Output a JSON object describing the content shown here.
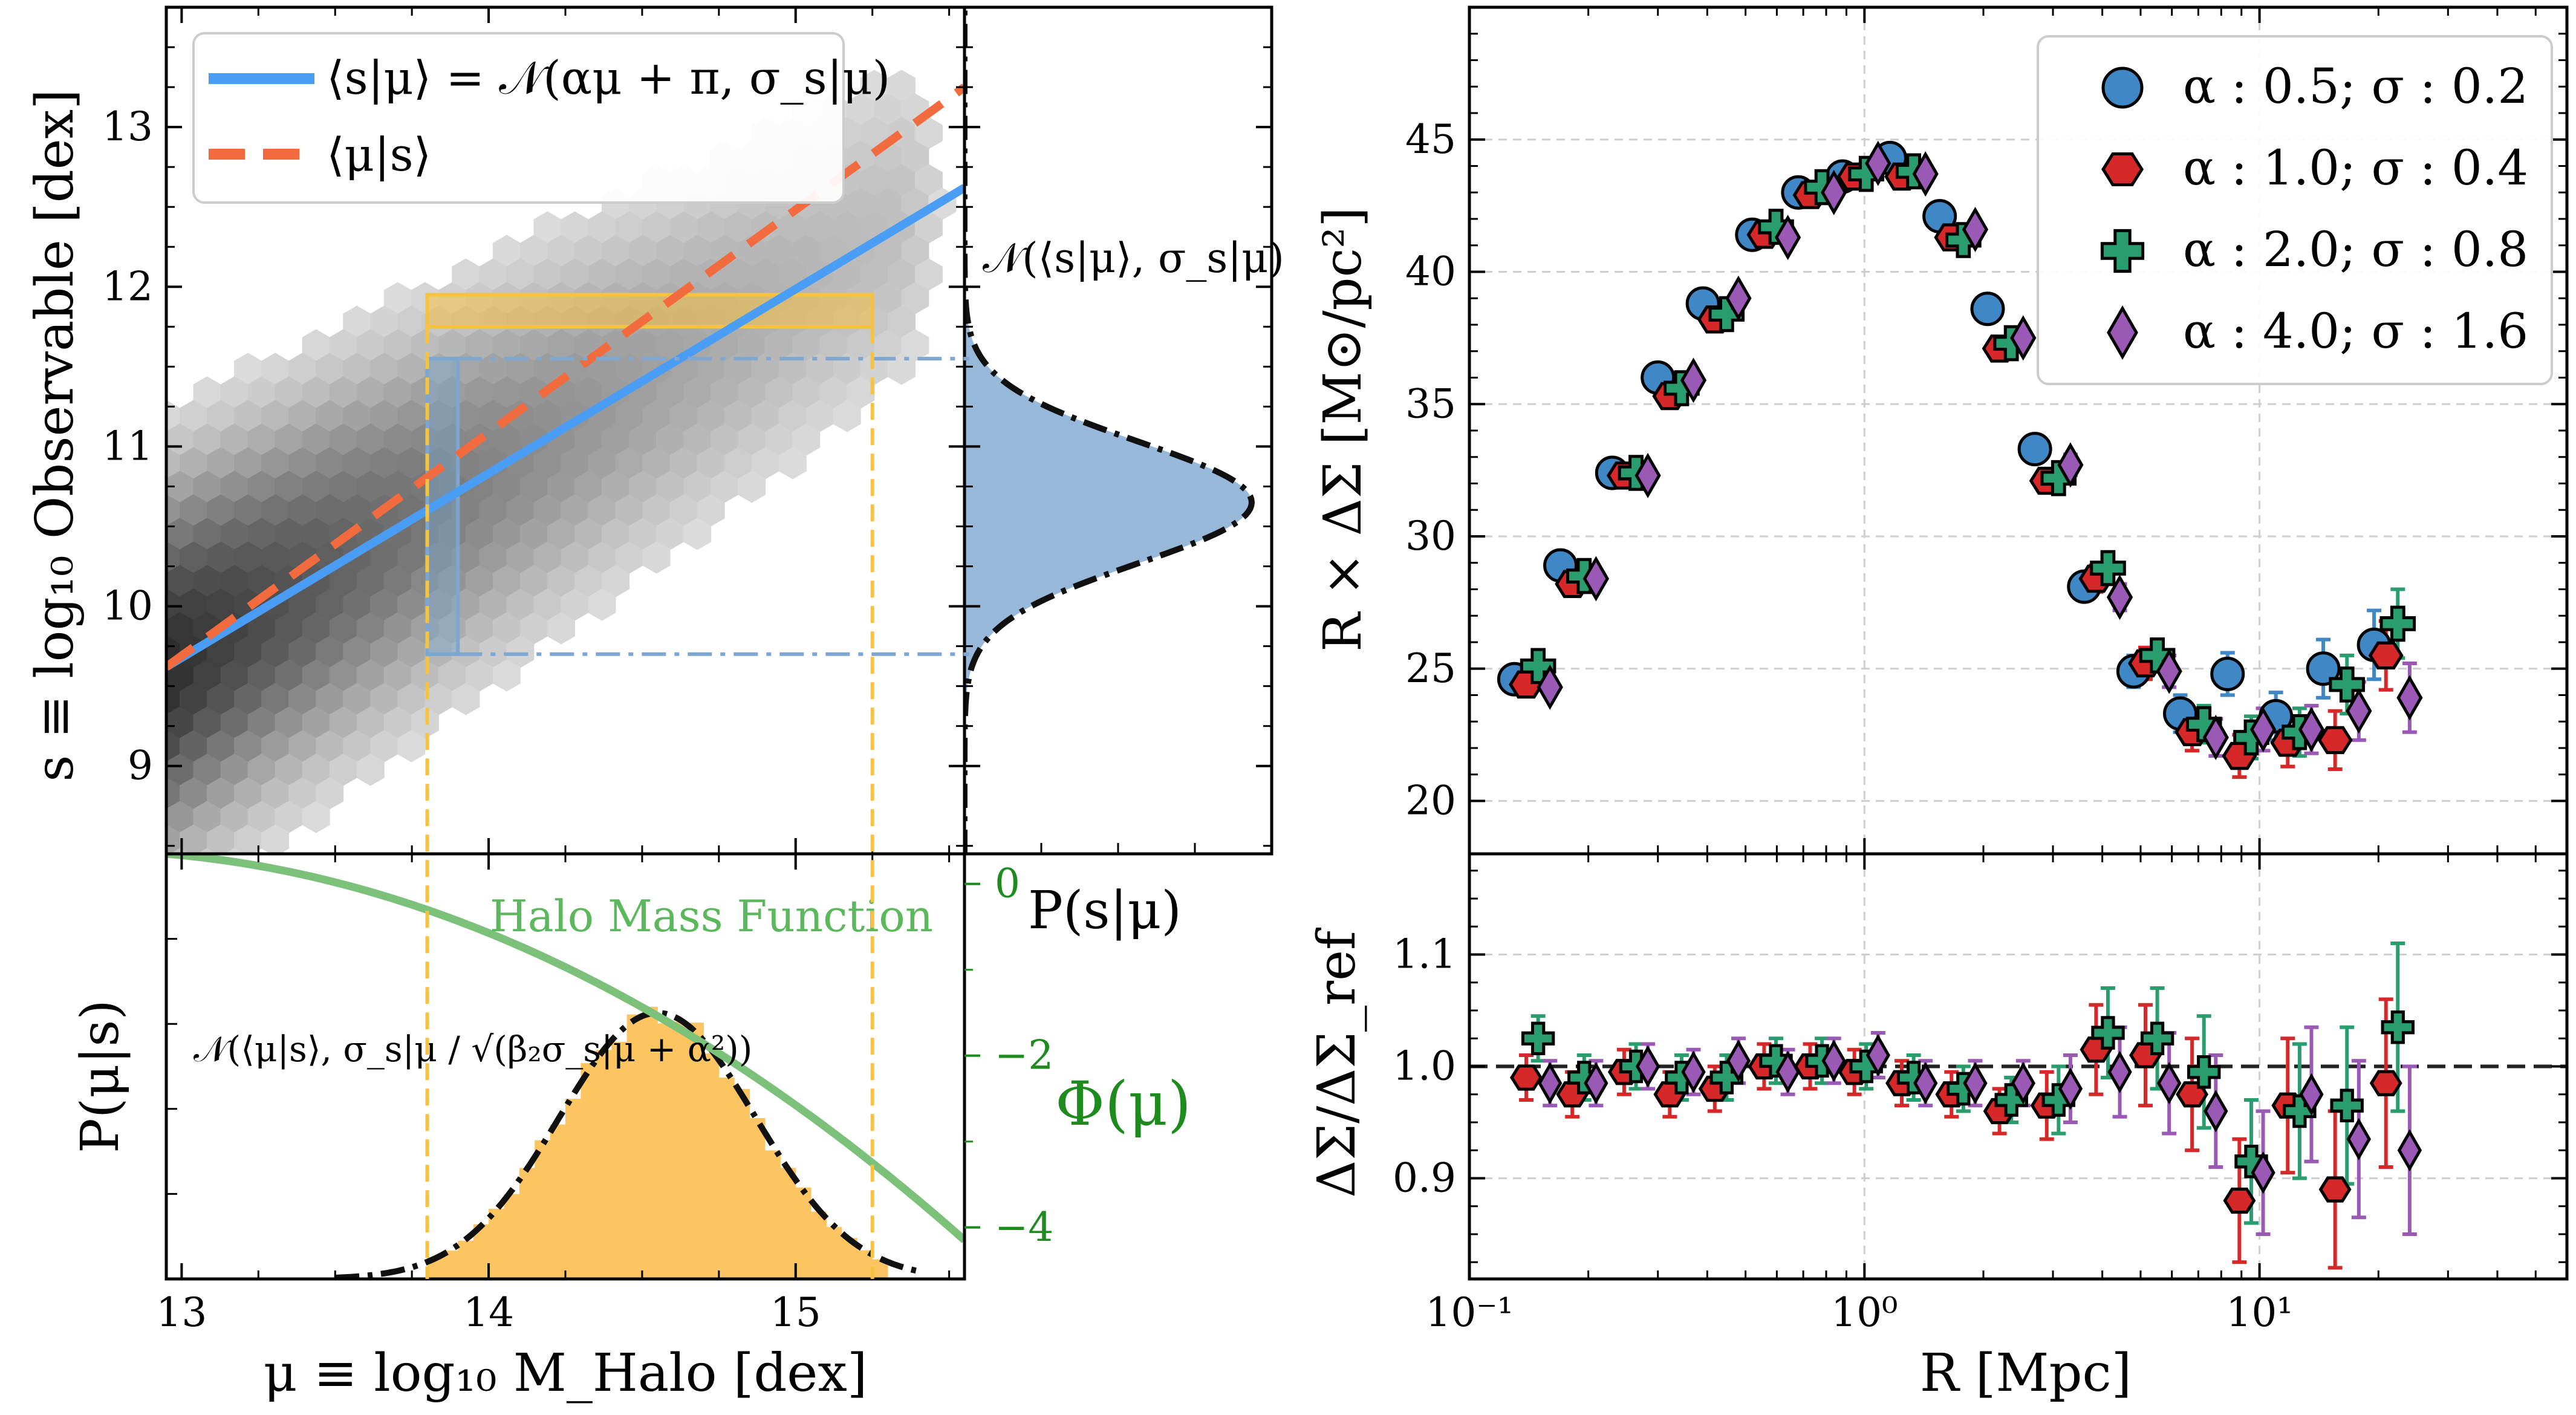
{
  "chart_data": [
    {
      "panel": "joint",
      "type": "scatter",
      "hexbin": true,
      "xlabel": "μ ≡ log₁₀ M_Halo [dex]",
      "ylabel": "s ≡ log₁₀ Observable [dex]",
      "xlim": [
        12.95,
        15.55
      ],
      "ylim": [
        8.45,
        13.75
      ],
      "xticks": [
        "13",
        "14",
        "15"
      ],
      "yticks": [
        "9",
        "10",
        "11",
        "12",
        "13"
      ],
      "lines": [
        {
          "name": "⟨s|μ⟩ = 𝒩(αμ + π, σ_s|μ)",
          "color": "#4a9df5",
          "style": "solid",
          "x": [
            12.95,
            15.55
          ],
          "y": [
            9.62,
            12.62
          ]
        },
        {
          "name": "⟨μ|s⟩",
          "color": "#f26b3f",
          "style": "dashed",
          "x": [
            12.95,
            15.55
          ],
          "y": [
            9.62,
            13.25
          ]
        }
      ],
      "selection_bin": {
        "x": [
          13.8,
          13.9
        ],
        "y": [
          9.7,
          11.55
        ]
      },
      "observable_bin": {
        "x": [
          13.8,
          15.25
        ],
        "y": [
          11.75,
          11.95
        ]
      },
      "colors": {
        "hex_dark": "#333333",
        "bin_blue": "#7aa6d1",
        "bin_yellow": "#f5c341"
      }
    },
    {
      "panel": "marginal_s",
      "type": "area",
      "xlabel": "P(s|μ)",
      "annotation": "𝒩(⟨s|μ⟩, σ_s|μ)",
      "gaussian": {
        "mean": 10.65,
        "sigma": 0.38
      },
      "color": "#86abd3"
    },
    {
      "panel": "marginal_mu",
      "type": "area",
      "ylabel": "P(μ|s)",
      "annotation": "𝒩(⟨μ|s⟩, σ_s|μ / √(β₂σ_s|μ + α²))",
      "gaussian": {
        "mean": 14.55,
        "sigma": 0.32
      },
      "color": "#fdc561",
      "hmf": {
        "name": "Halo Mass Function",
        "axis_label": "Φ(μ)",
        "yticks": [
          "0",
          "−2",
          "−4"
        ],
        "ylim": [
          -4.6,
          0.35
        ],
        "x": [
          12.95,
          13.5,
          14.0,
          14.5,
          15.0,
          15.55
        ],
        "y": [
          0.35,
          0.05,
          -0.55,
          -1.45,
          -2.75,
          -4.45
        ],
        "color": "#7cc17a"
      }
    },
    {
      "panel": "profile",
      "type": "scatter",
      "xlabel": "R [Mpc]",
      "ylabel": "R × ΔΣ [M⊙/pc²]",
      "xscale": "log",
      "xlim": [
        0.1,
        60
      ],
      "ylim": [
        18,
        50
      ],
      "xticks": [
        "10⁻¹",
        "10⁰",
        "10¹"
      ],
      "yticks": [
        "20",
        "25",
        "30",
        "35",
        "40",
        "45"
      ],
      "grid": true,
      "legend_position": "top-right",
      "x": [
        0.13,
        0.17,
        0.23,
        0.3,
        0.39,
        0.52,
        0.68,
        0.88,
        1.16,
        1.55,
        2.05,
        2.7,
        3.6,
        4.8,
        6.3,
        8.3,
        11.0,
        14.5,
        19.5
      ],
      "series": [
        {
          "name": "α : 0.5; σ : 0.2",
          "marker": "circle",
          "color": "#3f88c5",
          "err_color": "#3f88c5",
          "values": [
            24.6,
            28.9,
            32.4,
            36.0,
            38.8,
            41.4,
            43.0,
            43.6,
            44.3,
            42.1,
            38.6,
            33.3,
            28.1,
            24.9,
            23.3,
            24.8,
            23.2,
            25.0,
            25.9
          ],
          "errors": [
            0.3,
            0.3,
            0.3,
            0.3,
            0.3,
            0.3,
            0.3,
            0.3,
            0.3,
            0.3,
            0.3,
            0.4,
            0.5,
            0.6,
            0.7,
            0.8,
            0.9,
            1.1,
            1.3
          ]
        },
        {
          "name": "α : 1.0; σ : 0.4",
          "marker": "hexagon",
          "color": "#d62828",
          "err_color": "#d62828",
          "values": [
            24.4,
            28.2,
            32.3,
            35.3,
            38.2,
            41.4,
            42.9,
            43.6,
            43.6,
            41.3,
            37.1,
            32.1,
            28.4,
            25.2,
            22.6,
            21.7,
            22.2,
            22.3,
            25.5
          ],
          "errors": [
            0.3,
            0.3,
            0.3,
            0.3,
            0.3,
            0.3,
            0.3,
            0.3,
            0.3,
            0.3,
            0.3,
            0.4,
            0.5,
            0.6,
            0.7,
            0.8,
            0.9,
            1.1,
            1.3
          ]
        },
        {
          "name": "α : 2.0; σ : 0.8",
          "marker": "plus",
          "color": "#2a9d6f",
          "err_color": "#2a9d6f",
          "values": [
            25.1,
            28.5,
            32.4,
            35.6,
            38.4,
            41.7,
            43.2,
            43.7,
            43.8,
            41.2,
            37.3,
            32.2,
            28.8,
            25.5,
            22.9,
            22.4,
            22.6,
            24.4,
            26.7
          ],
          "errors": [
            0.3,
            0.3,
            0.3,
            0.3,
            0.3,
            0.3,
            0.3,
            0.3,
            0.3,
            0.3,
            0.3,
            0.4,
            0.5,
            0.6,
            0.7,
            0.8,
            0.9,
            1.1,
            1.3
          ]
        },
        {
          "name": "α : 4.0; σ : 1.6",
          "marker": "diamond",
          "color": "#9b59b6",
          "err_color": "#9b59b6",
          "values": [
            24.3,
            28.4,
            32.3,
            35.9,
            39.0,
            41.3,
            43.0,
            44.1,
            43.7,
            41.6,
            37.5,
            32.7,
            27.7,
            24.9,
            22.4,
            22.7,
            22.7,
            23.4,
            23.9
          ],
          "errors": [
            0.3,
            0.3,
            0.3,
            0.3,
            0.3,
            0.3,
            0.3,
            0.3,
            0.3,
            0.3,
            0.3,
            0.4,
            0.5,
            0.6,
            0.7,
            0.8,
            0.9,
            1.1,
            1.3
          ]
        }
      ]
    },
    {
      "panel": "ratio",
      "type": "scatter",
      "xlabel": "R [Mpc]",
      "ylabel": "ΔΣ/ΔΣ_ref",
      "xscale": "log",
      "xlim": [
        0.1,
        60
      ],
      "ylim": [
        0.81,
        1.19
      ],
      "yticks": [
        "0.9",
        "1.0",
        "1.1"
      ],
      "grid": true,
      "reference_line": 1.0,
      "x": [
        0.13,
        0.17,
        0.23,
        0.3,
        0.39,
        0.52,
        0.68,
        0.88,
        1.16,
        1.55,
        2.05,
        2.7,
        3.6,
        4.8,
        6.3,
        8.3,
        11.0,
        14.5,
        19.5
      ],
      "series": [
        {
          "name": "α : 1.0; σ : 0.4",
          "marker": "hexagon",
          "color": "#d62828",
          "values": [
            0.99,
            0.975,
            0.995,
            0.975,
            0.98,
            1.0,
            1.0,
            0.995,
            0.985,
            0.975,
            0.96,
            0.965,
            1.015,
            1.01,
            0.975,
            0.88,
            0.965,
            0.89,
            0.985
          ],
          "errors": [
            0.02,
            0.02,
            0.02,
            0.02,
            0.02,
            0.02,
            0.02,
            0.02,
            0.02,
            0.02,
            0.02,
            0.03,
            0.04,
            0.045,
            0.05,
            0.055,
            0.06,
            0.07,
            0.075
          ]
        },
        {
          "name": "α : 2.0; σ : 0.8",
          "marker": "plus",
          "color": "#2a9d6f",
          "values": [
            1.025,
            0.99,
            1.0,
            0.99,
            0.99,
            1.005,
            1.005,
            1.0,
            0.99,
            0.98,
            0.97,
            0.97,
            1.03,
            1.025,
            0.995,
            0.915,
            0.96,
            0.965,
            1.035
          ],
          "errors": [
            0.02,
            0.02,
            0.02,
            0.02,
            0.02,
            0.02,
            0.02,
            0.02,
            0.02,
            0.02,
            0.02,
            0.03,
            0.04,
            0.045,
            0.05,
            0.055,
            0.06,
            0.07,
            0.075
          ]
        },
        {
          "name": "α : 4.0; σ : 1.6",
          "marker": "diamond",
          "color": "#9b59b6",
          "values": [
            0.985,
            0.985,
            1.0,
            0.995,
            1.005,
            0.995,
            1.005,
            1.01,
            0.985,
            0.985,
            0.985,
            0.98,
            0.995,
            0.985,
            0.96,
            0.905,
            0.975,
            0.935,
            0.925
          ],
          "errors": [
            0.02,
            0.02,
            0.02,
            0.02,
            0.02,
            0.02,
            0.02,
            0.02,
            0.02,
            0.02,
            0.02,
            0.03,
            0.04,
            0.045,
            0.05,
            0.055,
            0.06,
            0.07,
            0.075
          ]
        }
      ]
    }
  ]
}
